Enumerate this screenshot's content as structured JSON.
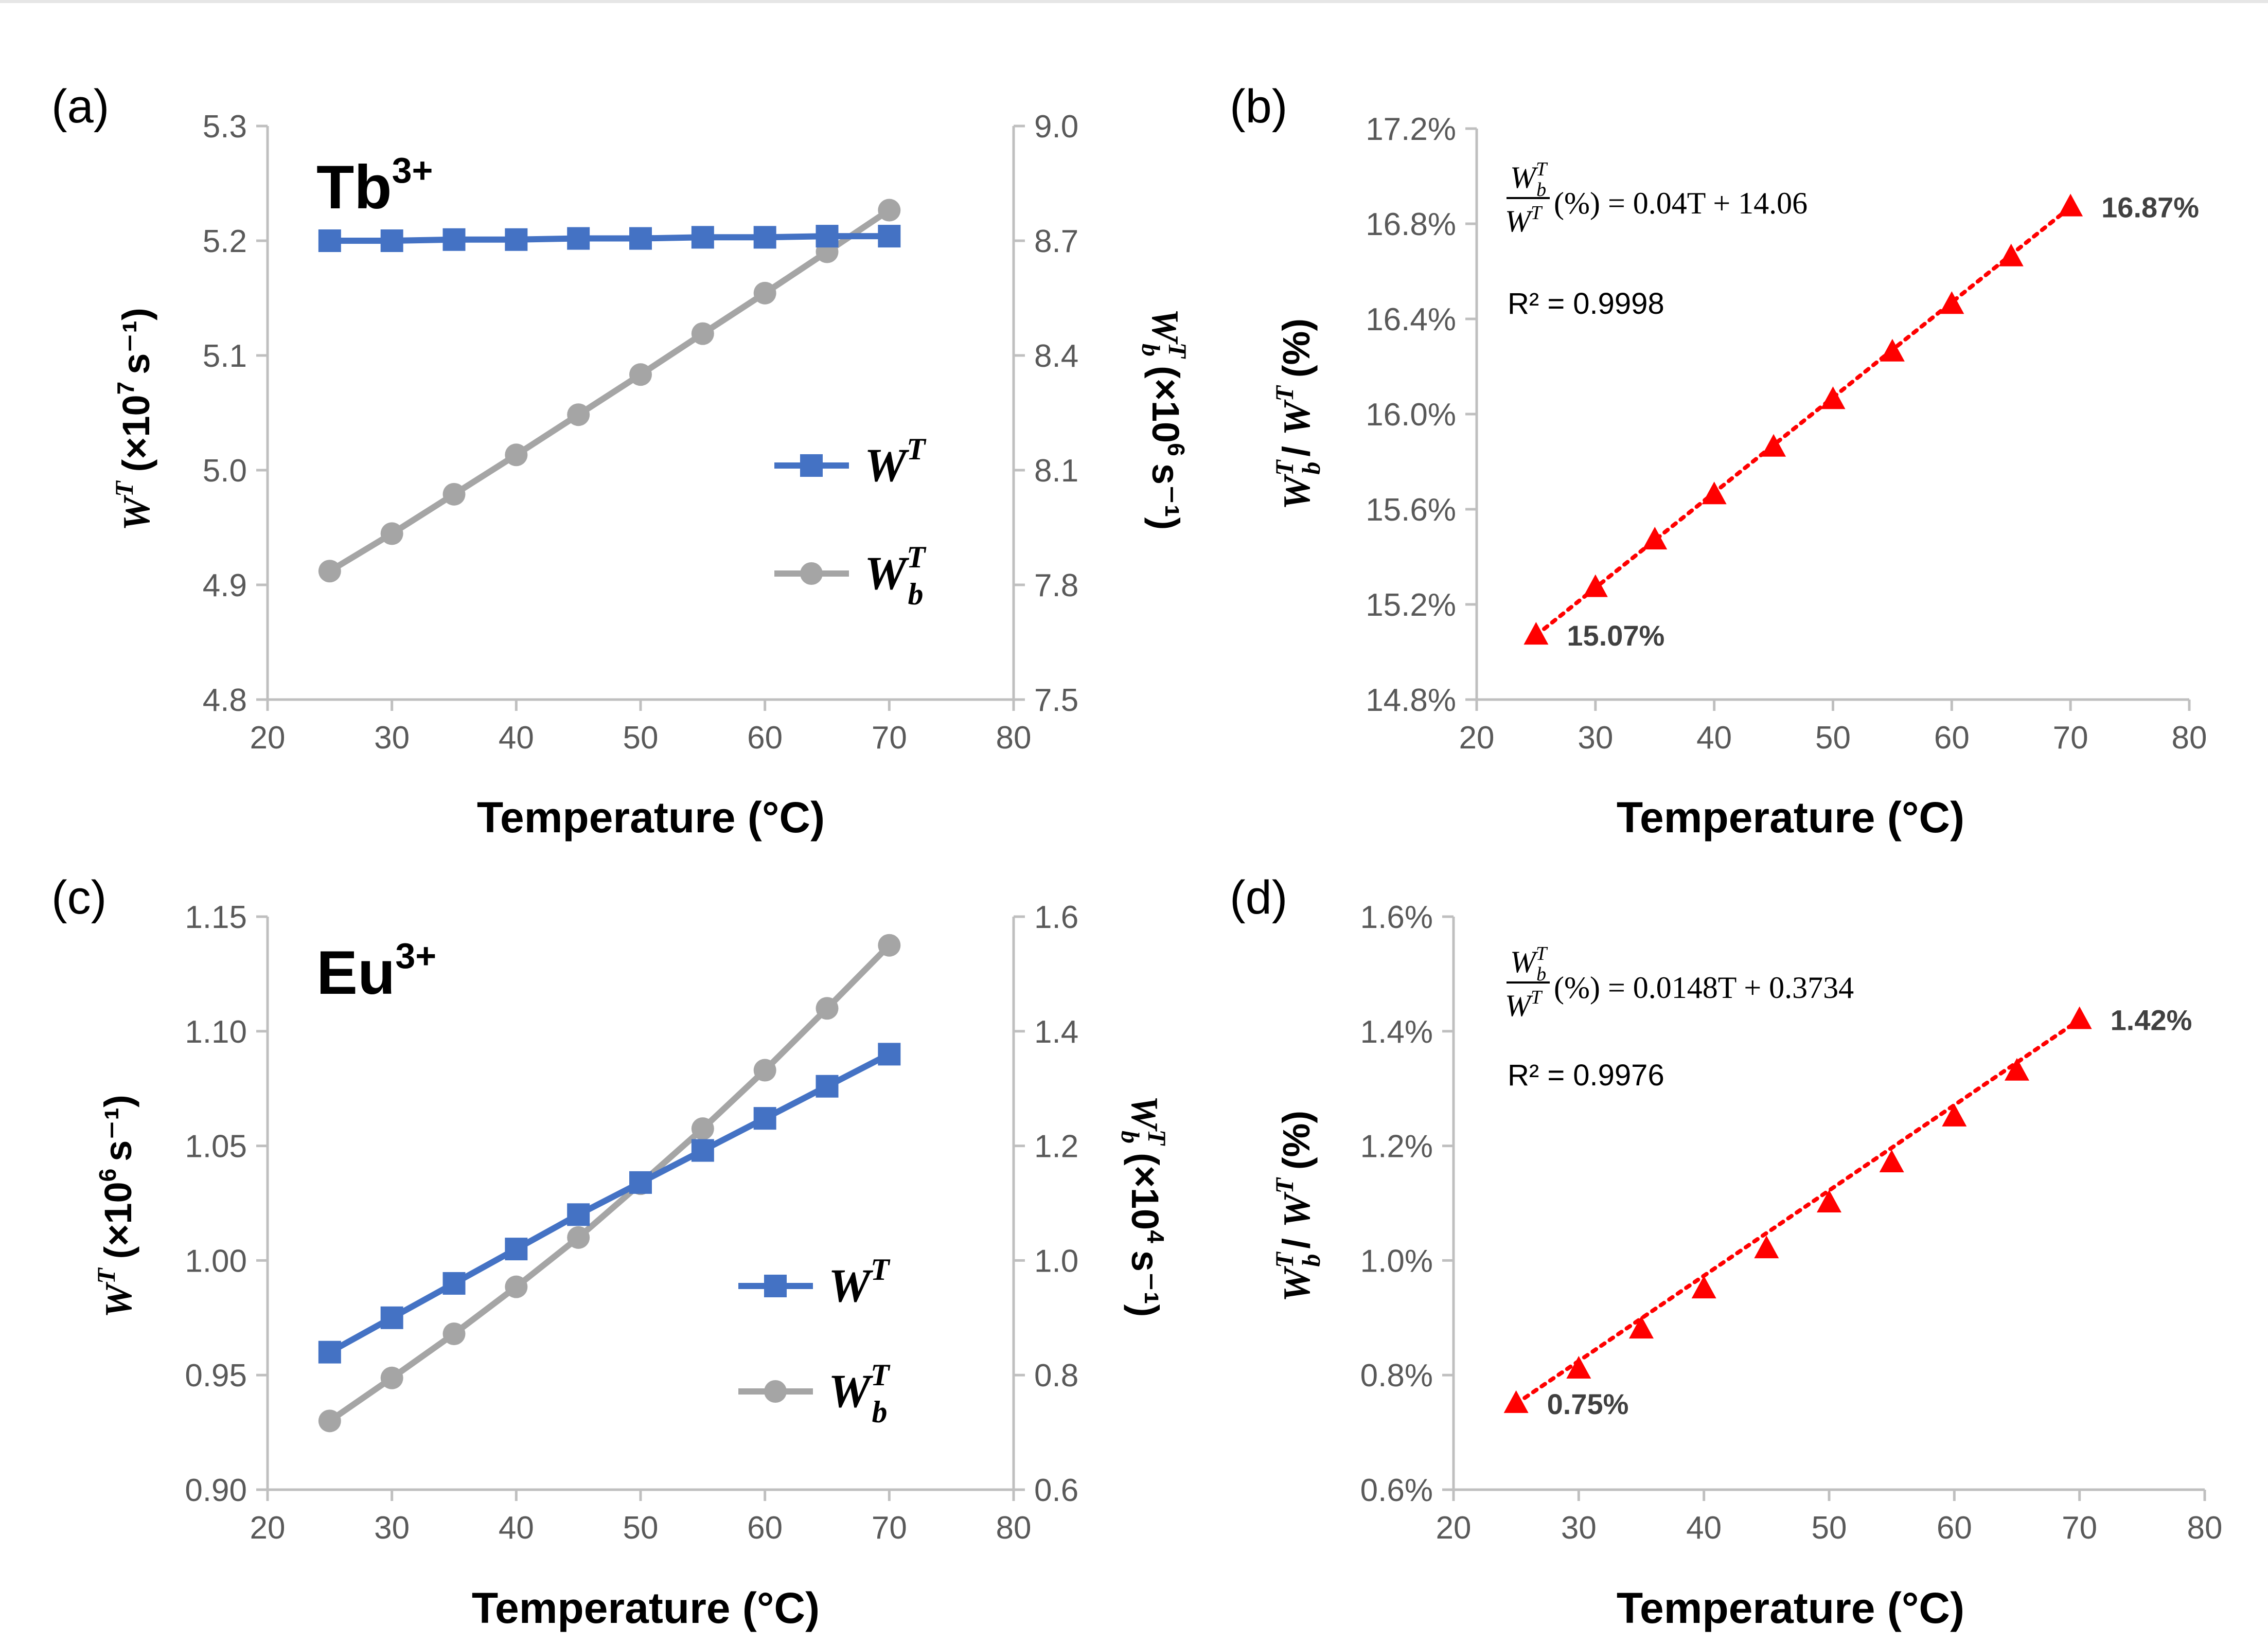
{
  "colors": {
    "blue": "#4472c4",
    "gray": "#a5a5a5",
    "red": "#ff0000",
    "axis": "#bfbfbf",
    "tick": "#595959"
  },
  "chart_data": [
    {
      "id": "a",
      "type": "line",
      "panel_label": "(a)",
      "ion_label": "Tb",
      "ion_sup": "3+",
      "xlabel": "Temperature (°C)",
      "ylabel": "W^T (×10^7 s^-1)",
      "ylabel_main": "W",
      "ylabel_sup": "T",
      "ylabel_unit": "(×10",
      "ylabel_exp": "7",
      "ylabel_tail": "s⁻¹)",
      "y2label": "W_b^T (×10^6 s^-1)",
      "y2label_unit": "(×10",
      "y2label_exp": "6",
      "y2label_tail": "s⁻¹)",
      "xlim": [
        20,
        80
      ],
      "xticks": [
        20,
        30,
        40,
        50,
        60,
        70,
        80
      ],
      "ylim": [
        4.8,
        5.3
      ],
      "yticks": [
        "4.8",
        "4.9",
        "5.0",
        "5.1",
        "5.2",
        "5.3"
      ],
      "y2lim": [
        7.5,
        9.0
      ],
      "y2ticks": [
        "7.5",
        "7.8",
        "8.1",
        "8.4",
        "8.7",
        "9.0"
      ],
      "x": [
        25,
        30,
        35,
        40,
        45,
        50,
        55,
        60,
        65,
        70
      ],
      "series": [
        {
          "name": "W^T",
          "legend_main": "W",
          "legend_sup": "T",
          "legend_sub": "",
          "axis": "left",
          "marker": "square",
          "values": [
            5.2,
            5.2,
            5.201,
            5.201,
            5.202,
            5.202,
            5.203,
            5.203,
            5.204,
            5.204
          ]
        },
        {
          "name": "W_b^T",
          "legend_main": "W",
          "legend_sup": "T",
          "legend_sub": "b",
          "axis": "right",
          "marker": "circle",
          "values": [
            7.836,
            7.934,
            8.037,
            8.14,
            8.245,
            8.35,
            8.457,
            8.563,
            8.671,
            8.78
          ]
        }
      ]
    },
    {
      "id": "b",
      "type": "scatter",
      "panel_label": "(b)",
      "xlabel": "Temperature (°C)",
      "ylabel": "W_b^T / W^T (%)",
      "xlim": [
        20,
        80
      ],
      "xticks": [
        20,
        30,
        40,
        50,
        60,
        70,
        80
      ],
      "ylim": [
        14.8,
        17.2
      ],
      "yticks": [
        "14.8%",
        "15.2%",
        "15.6%",
        "16.0%",
        "16.4%",
        "16.8%",
        "17.2%"
      ],
      "x": [
        25,
        30,
        35,
        40,
        45,
        50,
        55,
        60,
        65,
        70
      ],
      "series": [
        {
          "name": "W_b^T / W^T",
          "marker": "triangle",
          "trendline": "dotted",
          "values": [
            15.07,
            15.27,
            15.47,
            15.66,
            15.86,
            16.06,
            16.26,
            16.46,
            16.66,
            16.87
          ]
        }
      ],
      "equation_rhs": "(%) = 0.04T + 14.06",
      "r_squared": "R² = 0.9998",
      "data_labels": {
        "first": "15.07%",
        "last": "16.87%"
      }
    },
    {
      "id": "c",
      "type": "line",
      "panel_label": "(c)",
      "ion_label": "Eu",
      "ion_sup": "3+",
      "xlabel": "Temperature (°C)",
      "ylabel": "W^T (×10^6 s^-1)",
      "ylabel_main": "W",
      "ylabel_sup": "T",
      "ylabel_unit": "(×10",
      "ylabel_exp": "6",
      "ylabel_tail": "s⁻¹)",
      "y2label": "W_b^T (×10^4 s^-1)",
      "y2label_unit": "(×10",
      "y2label_exp": "4",
      "y2label_tail": "s⁻¹)",
      "xlim": [
        20,
        80
      ],
      "xticks": [
        20,
        30,
        40,
        50,
        60,
        70,
        80
      ],
      "ylim": [
        0.9,
        1.15
      ],
      "yticks": [
        "0.90",
        "0.95",
        "1.00",
        "1.05",
        "1.10",
        "1.15"
      ],
      "y2lim": [
        0.6,
        1.6
      ],
      "y2ticks": [
        "0.6",
        "0.8",
        "1.0",
        "1.2",
        "1.4",
        "1.6"
      ],
      "x": [
        25,
        30,
        35,
        40,
        45,
        50,
        55,
        60,
        65,
        70
      ],
      "series": [
        {
          "name": "W^T",
          "legend_main": "W",
          "legend_sup": "T",
          "legend_sub": "",
          "axis": "left",
          "marker": "square",
          "values": [
            0.96,
            0.975,
            0.99,
            1.005,
            1.02,
            1.034,
            1.048,
            1.062,
            1.076,
            1.09
          ]
        },
        {
          "name": "W_b^T",
          "legend_main": "W",
          "legend_sup": "T",
          "legend_sub": "b",
          "axis": "right",
          "marker": "circle",
          "values": [
            0.72,
            0.795,
            0.872,
            0.954,
            1.04,
            1.134,
            1.23,
            1.332,
            1.44,
            1.55
          ]
        }
      ]
    },
    {
      "id": "d",
      "type": "scatter",
      "panel_label": "(d)",
      "xlabel": "Temperature (°C)",
      "ylabel": "W_b^T / W^T (%)",
      "xlim": [
        20,
        80
      ],
      "xticks": [
        20,
        30,
        40,
        50,
        60,
        70,
        80
      ],
      "ylim": [
        0.6,
        1.6
      ],
      "yticks": [
        "0.6%",
        "0.8%",
        "1.0%",
        "1.2%",
        "1.4%",
        "1.6%"
      ],
      "x": [
        25,
        30,
        35,
        40,
        45,
        50,
        55,
        60,
        65,
        70
      ],
      "series": [
        {
          "name": "W_b^T / W^T",
          "marker": "triangle",
          "trendline": "dotted",
          "values": [
            0.75,
            0.81,
            0.88,
            0.95,
            1.02,
            1.1,
            1.17,
            1.25,
            1.33,
            1.42
          ]
        }
      ],
      "equation_rhs": "(%) = 0.0148T + 0.3734",
      "r_squared": "R² = 0.9976",
      "data_labels": {
        "first": "0.75%",
        "last": "1.42%"
      }
    }
  ]
}
